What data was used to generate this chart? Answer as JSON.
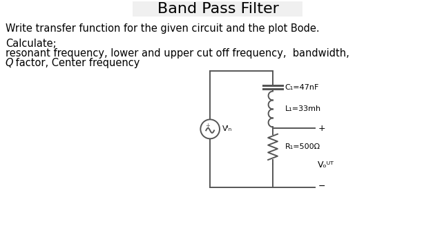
{
  "title": "Band Pass Filter",
  "title_fontsize": 16,
  "title_fontweight": "normal",
  "title_bg_color": "#f0f0f0",
  "line1": "Write transfer function for the given circuit and the plot Bode.",
  "line2": "Calculate;",
  "line3": "resonant frequency, lower and upper cut off frequency,  bandwidth,",
  "line4_italic": "Q",
  "line4_rest": " factor, Center frequency",
  "text_fontsize": 10.5,
  "label_C1": "C₁=47nF",
  "label_L1": "L₁=33mh",
  "label_R1": "R₁=500Ω",
  "label_VIN": "Vᴵₙ",
  "label_VOUT": "Vₒᵁᵀ",
  "bg_color": "#ffffff",
  "circuit_color": "#555555",
  "line_width": 1.4
}
